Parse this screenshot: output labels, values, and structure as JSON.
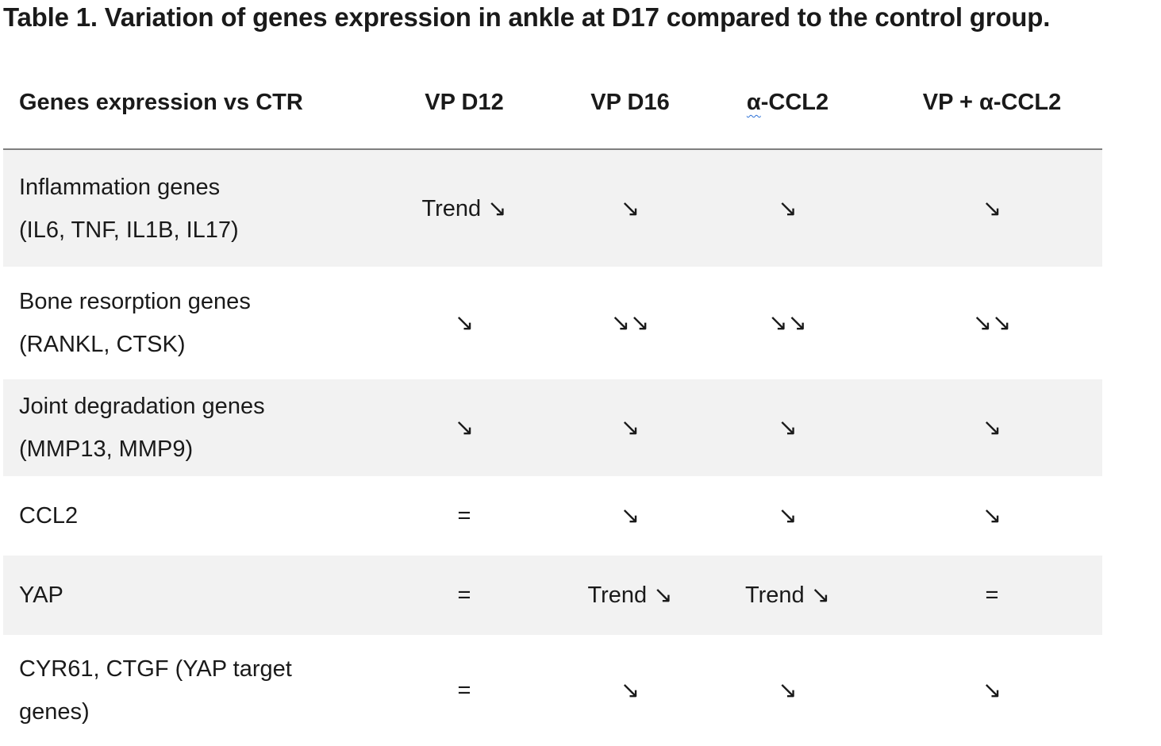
{
  "title": "Table 1. Variation of genes expression in ankle at D17 compared to the control group.",
  "table": {
    "headers": {
      "c0": "Genes expression vs CTR",
      "c1": "VP D12",
      "c2": "VP D16",
      "c3_alpha": "α",
      "c3_rest": "-CCL2",
      "c4": "VP + α-CCL2"
    },
    "rows": [
      {
        "label_line1": "Inflammation genes",
        "label_line2": "(IL6, TNF, IL1B, IL17)",
        "vp_d12": "Trend ↘",
        "vp_d16": "↘",
        "a_ccl2": "↘",
        "vp_a_ccl2": "↘"
      },
      {
        "label_line1": "Bone resorption genes",
        "label_line2": "(RANKL, CTSK)",
        "vp_d12": "↘",
        "vp_d16": "↘↘",
        "a_ccl2": "↘↘",
        "vp_a_ccl2": "↘↘"
      },
      {
        "label_line1": "Joint degradation genes",
        "label_line2": "(MMP13, MMP9)",
        "vp_d12": "↘",
        "vp_d16": "↘",
        "a_ccl2": "↘",
        "vp_a_ccl2": "↘"
      },
      {
        "label_line1": "CCL2",
        "vp_d12": "=",
        "vp_d16": "↘",
        "a_ccl2": "↘",
        "vp_a_ccl2": "↘"
      },
      {
        "label_line1": "YAP",
        "vp_d12": "=",
        "vp_d16": "Trend ↘",
        "a_ccl2": "Trend ↘",
        "vp_a_ccl2": "="
      },
      {
        "label_line1": "CYR61, CTGF (YAP target",
        "label_line2": "genes)",
        "vp_d12": "=",
        "vp_d16": "↘",
        "a_ccl2": "↘",
        "vp_a_ccl2": "↘"
      }
    ]
  }
}
